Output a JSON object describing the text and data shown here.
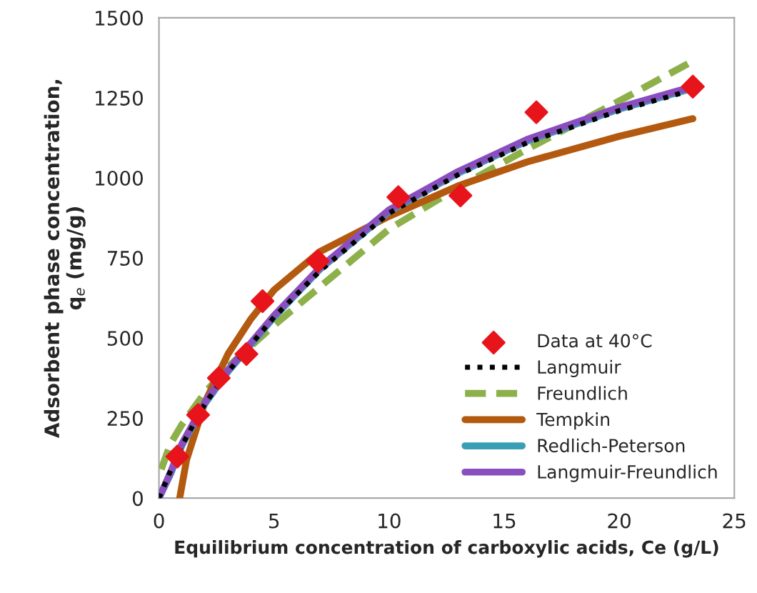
{
  "chart_data": {
    "type": "line",
    "xlabel": "Equilibrium concentration of carboxylic acids, Ce (g/L)",
    "ylabel": "Adsorbent phase concentration,\nq$_{e}$ (mg/g)",
    "xlim": [
      0,
      25
    ],
    "xticks": [
      0,
      5,
      10,
      15,
      20,
      25
    ],
    "ylim": [
      0,
      1500
    ],
    "yticks": [
      0,
      250,
      500,
      750,
      1000,
      1250,
      1500
    ],
    "grid": false,
    "legend": "bottom right",
    "series": [
      {
        "name": "Data at 40°C",
        "type": "scatter",
        "color": "#e8141b",
        "marker": "diamond",
        "x": [
          0.8,
          1.7,
          2.6,
          3.8,
          4.5,
          6.9,
          10.4,
          13.1,
          16.4,
          23.2
        ],
        "values": [
          130,
          260,
          375,
          450,
          615,
          740,
          940,
          945,
          1205,
          1285
        ]
      },
      {
        "name": "Langmuir",
        "color": "#000000",
        "line_style": "dotted",
        "x": [
          0,
          0.5,
          1,
          2,
          3,
          5,
          7,
          10,
          13,
          16,
          20,
          23.2
        ],
        "values": [
          0,
          85,
          165,
          295,
          395,
          565,
          710,
          890,
          1010,
          1110,
          1210,
          1275
        ]
      },
      {
        "name": "Freundlich",
        "color": "#8db04a",
        "line_style": "dashed",
        "x": [
          0.1,
          0.5,
          1,
          2,
          3,
          5,
          7,
          10,
          13,
          16,
          20,
          23.2
        ],
        "values": [
          90,
          170,
          230,
          330,
          410,
          540,
          660,
          840,
          970,
          1090,
          1240,
          1365
        ]
      },
      {
        "name": "Tempkin",
        "color": "#b35a10",
        "line_style": "solid",
        "x": [
          0.9,
          1.2,
          2,
          3,
          4,
          5,
          7,
          10,
          13,
          16,
          20,
          23.2
        ],
        "values": [
          0,
          120,
          300,
          450,
          560,
          650,
          770,
          880,
          975,
          1050,
          1130,
          1185
        ]
      },
      {
        "name": "Redlich-Peterson",
        "color": "#3a9eb5",
        "line_style": "solid",
        "x": [
          0,
          0.5,
          1,
          2,
          3,
          5,
          7,
          10,
          13,
          16,
          20,
          23.2
        ],
        "values": [
          0,
          75,
          165,
          295,
          395,
          565,
          715,
          895,
          1015,
          1115,
          1215,
          1280
        ]
      },
      {
        "name": "Langmuir-Freundlich",
        "color": "#8a4fbf",
        "line_style": "solid",
        "x": [
          0,
          0.5,
          1,
          2,
          3,
          5,
          7,
          10,
          13,
          16,
          20,
          23.2
        ],
        "values": [
          0,
          80,
          170,
          300,
          400,
          570,
          720,
          900,
          1020,
          1120,
          1220,
          1285
        ]
      }
    ]
  }
}
